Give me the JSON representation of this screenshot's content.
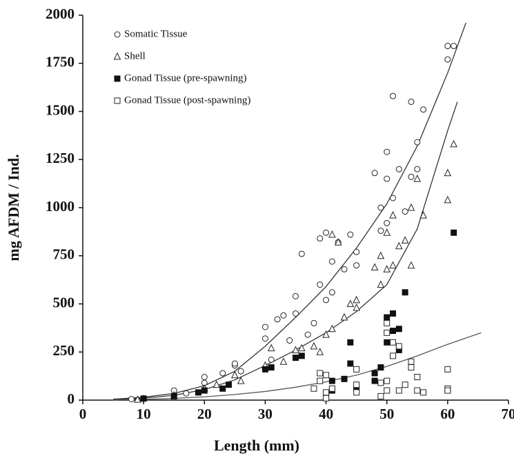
{
  "chart_data": {
    "type": "scatter",
    "x_label": "Length (mm)",
    "y_label": "mg AFDM / Ind.",
    "xlim": [
      0,
      70
    ],
    "xticks": [
      0,
      10,
      20,
      30,
      40,
      50,
      60,
      70
    ],
    "ylim": [
      0,
      2000
    ],
    "yticks": [
      0,
      250,
      500,
      750,
      1000,
      1250,
      1500,
      1750,
      2000
    ],
    "legend": "top-left",
    "series": [
      {
        "name": "Somatic Tissue",
        "marker": "circle",
        "color": "#222222",
        "x": [
          8,
          10,
          15,
          17,
          20,
          20,
          23,
          25,
          25,
          26,
          30,
          30,
          31,
          32,
          33,
          34,
          35,
          35,
          36,
          37,
          38,
          39,
          39,
          40,
          40,
          41,
          41,
          42,
          43,
          44,
          45,
          45,
          48,
          49,
          49,
          50,
          50,
          50,
          51,
          51,
          52,
          53,
          54,
          54,
          55,
          55,
          56,
          60,
          60,
          61
        ],
        "values": [
          5,
          10,
          50,
          35,
          90,
          120,
          140,
          180,
          190,
          150,
          320,
          380,
          210,
          420,
          440,
          310,
          540,
          450,
          760,
          340,
          400,
          840,
          600,
          870,
          520,
          560,
          720,
          820,
          680,
          860,
          770,
          700,
          1180,
          1000,
          880,
          1290,
          1150,
          920,
          1050,
          1580,
          1200,
          980,
          1550,
          1160,
          1340,
          1200,
          1510,
          1840,
          1770,
          1840
        ]
      },
      {
        "name": "Shell",
        "marker": "triangle",
        "color": "#222222",
        "x": [
          9,
          15,
          20,
          22,
          25,
          26,
          30,
          31,
          33,
          35,
          36,
          38,
          39,
          40,
          41,
          41,
          42,
          43,
          44,
          45,
          45,
          48,
          49,
          49,
          50,
          50,
          51,
          51,
          52,
          53,
          54,
          54,
          55,
          56,
          60,
          60,
          61
        ],
        "values": [
          3,
          25,
          60,
          80,
          130,
          100,
          180,
          270,
          200,
          260,
          270,
          280,
          250,
          340,
          370,
          860,
          820,
          430,
          500,
          480,
          520,
          690,
          600,
          750,
          680,
          870,
          960,
          700,
          800,
          830,
          1000,
          700,
          1150,
          960,
          1180,
          1040,
          1330
        ]
      },
      {
        "name": "Gonad Tissue (pre-spawning)",
        "marker": "filled-square",
        "color": "#111111",
        "x": [
          10,
          15,
          19,
          20,
          23,
          24,
          30,
          31,
          35,
          36,
          40,
          41,
          41,
          43,
          44,
          44,
          45,
          48,
          48,
          49,
          50,
          50,
          51,
          51,
          52,
          52,
          53,
          61
        ],
        "values": [
          8,
          20,
          40,
          50,
          60,
          80,
          160,
          170,
          220,
          230,
          20,
          50,
          100,
          110,
          300,
          190,
          60,
          100,
          140,
          170,
          300,
          430,
          450,
          360,
          370,
          260,
          560,
          870
        ]
      },
      {
        "name": "Gonad Tissue (post-spawning)",
        "marker": "square",
        "color": "#222222",
        "x": [
          38,
          39,
          39,
          40,
          40,
          40,
          41,
          45,
          45,
          45,
          49,
          49,
          50,
          50,
          50,
          50,
          51,
          51,
          52,
          52,
          53,
          54,
          54,
          55,
          55,
          56,
          60,
          60,
          60
        ],
        "values": [
          60,
          100,
          140,
          40,
          130,
          10,
          60,
          40,
          80,
          160,
          20,
          90,
          50,
          100,
          400,
          350,
          300,
          230,
          280,
          50,
          80,
          170,
          200,
          50,
          120,
          40,
          160,
          60,
          50
        ]
      }
    ],
    "fits": [
      {
        "color": "#333333",
        "x": [
          5,
          10,
          15,
          20,
          25,
          30,
          35,
          40,
          45,
          50,
          55,
          60,
          63
        ],
        "values": [
          5,
          15,
          35,
          75,
          150,
          280,
          430,
          590,
          790,
          1020,
          1320,
          1700,
          1960
        ]
      },
      {
        "color": "#333333",
        "x": [
          5,
          10,
          15,
          20,
          25,
          30,
          35,
          40,
          45,
          50,
          55,
          60,
          61.6
        ],
        "values": [
          3,
          10,
          25,
          55,
          105,
          180,
          260,
          350,
          460,
          600,
          890,
          1400,
          1550
        ]
      },
      {
        "color": "#555555",
        "x": [
          5,
          10,
          15,
          20,
          25,
          30,
          35,
          40,
          45,
          50,
          55,
          60,
          65.5
        ],
        "values": [
          1,
          4,
          9,
          17,
          29,
          45,
          67,
          95,
          130,
          175,
          230,
          290,
          350
        ]
      }
    ]
  }
}
